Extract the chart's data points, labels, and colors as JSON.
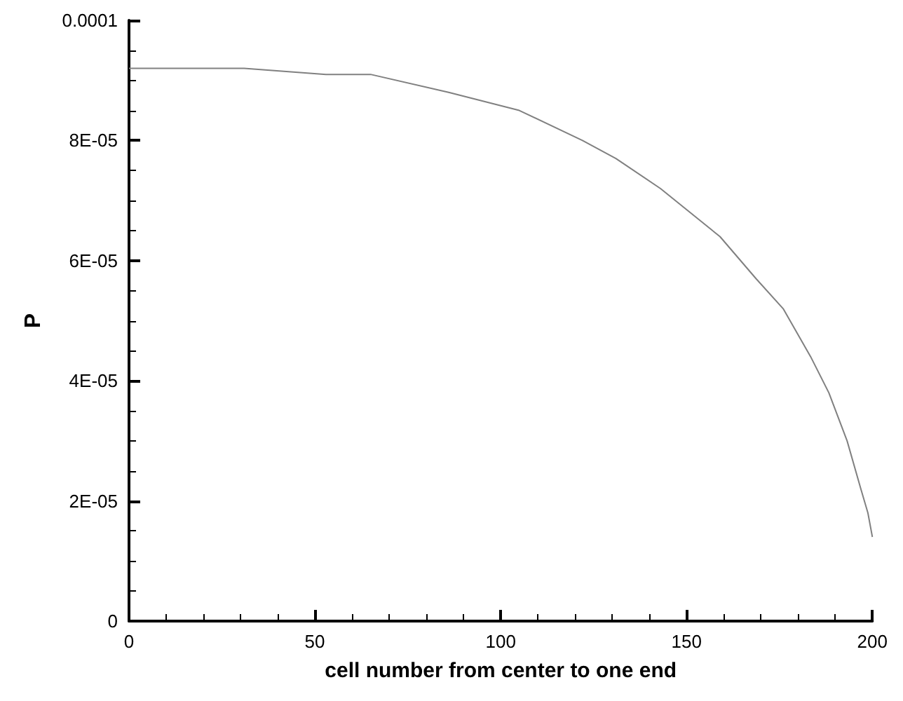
{
  "chart_data": {
    "type": "line",
    "xlabel": "cell number from center to one end",
    "ylabel": "P",
    "xlim": [
      0,
      200
    ],
    "xticks": [
      0,
      50,
      100,
      150,
      200
    ],
    "ylim": [
      0,
      0.0001
    ],
    "yticks": [
      {
        "value": 0,
        "label": "0"
      },
      {
        "value": 2e-05,
        "label": "2E-05"
      },
      {
        "value": 4e-05,
        "label": "4E-05"
      },
      {
        "value": 6e-05,
        "label": "6E-05"
      },
      {
        "value": 8e-05,
        "label": "8E-05"
      },
      {
        "value": 0.0001,
        "label": "0.0001"
      }
    ],
    "grid": false,
    "marker": "none",
    "line_style": "solid",
    "series": [
      {
        "color": "#808080",
        "x": [
          0,
          31,
          53,
          65,
          86,
          105,
          122,
          131,
          143,
          151,
          159,
          168.7,
          176,
          183.4,
          188.3,
          193.2,
          196.9,
          198.8,
          200
        ],
        "values": [
          9.2e-05,
          9.2e-05,
          9.1e-05,
          9.1e-05,
          8.8e-05,
          8.5e-05,
          8e-05,
          7.7e-05,
          7.2e-05,
          6.8e-05,
          6.4e-05,
          5.7e-05,
          5.2e-05,
          4.4e-05,
          3.8e-05,
          3e-05,
          2.2e-05,
          1.8e-05,
          1.4e-05
        ]
      }
    ]
  }
}
